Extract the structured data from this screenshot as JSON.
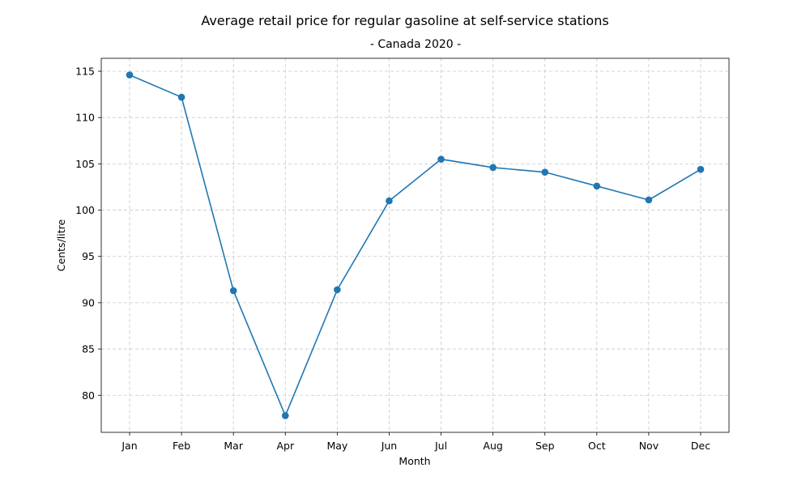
{
  "chart_data": {
    "type": "line",
    "title": "Average retail price for regular gasoline at self-service stations",
    "subtitle": "- Canada 2020 -",
    "xlabel": "Month",
    "ylabel": "Cents/litre",
    "categories": [
      "Jan",
      "Feb",
      "Mar",
      "Apr",
      "May",
      "Jun",
      "Jul",
      "Aug",
      "Sep",
      "Oct",
      "Nov",
      "Dec"
    ],
    "series": [
      {
        "values": [
          114.6,
          112.2,
          91.3,
          77.8,
          91.4,
          101.0,
          105.5,
          104.6,
          104.1,
          102.6,
          101.1,
          104.4
        ],
        "color": "#1f77b4",
        "marker": "circle"
      }
    ],
    "ylim": [
      76.0,
      116.4
    ],
    "yticks": [
      80,
      85,
      90,
      95,
      100,
      105,
      110,
      115
    ],
    "grid": true,
    "legend": "none"
  }
}
